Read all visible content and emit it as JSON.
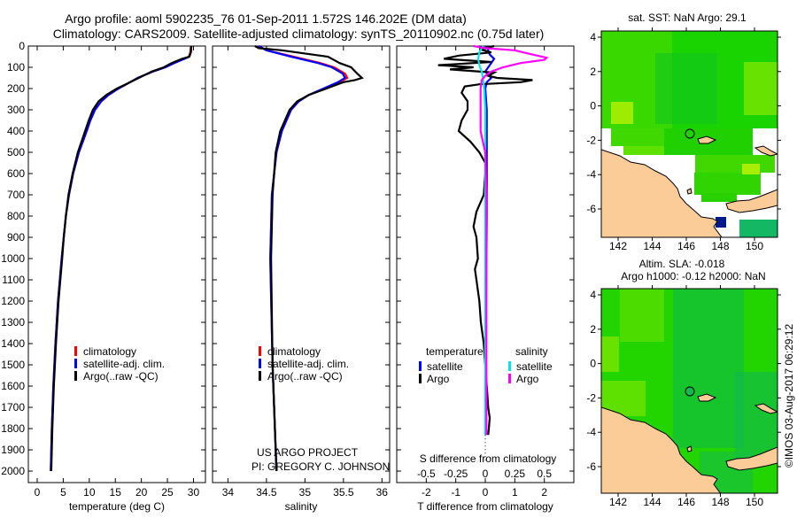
{
  "title_line1": "Argo profile: aoml 5902235_76 01-Sep-2011 1.572S 146.202E (DM data)",
  "title_line2": "Climatology: CARS2009. Satellite-adjusted climatology: synTS_20110902.nc (0.75d later)",
  "colors": {
    "climatology": "#ff0000",
    "satellite_temp": "#0000ff",
    "argo": "#000000",
    "satellite_sal": "#00e5ee",
    "argo_sal": "#ff00ff",
    "land": "#fbcb98"
  },
  "credits": {
    "project": "US ARGO PROJECT",
    "pi": "PI: GREGORY C. JOHNSON",
    "stamp": "©IMOS 03-Aug-2017 06:29:12"
  },
  "depth_ticks": [
    "0",
    "100",
    "200",
    "300",
    "400",
    "500",
    "600",
    "700",
    "800",
    "900",
    "1000",
    "1100",
    "1200",
    "1300",
    "1400",
    "1500",
    "1600",
    "1700",
    "1800",
    "1900",
    "2000"
  ],
  "chart_data": [
    {
      "type": "line",
      "name": "temperature-profile",
      "xlabel": "temperature (deg C)",
      "ylabel": "depth",
      "xlim": [
        -1.7,
        32.3
      ],
      "ylim": [
        2054,
        0
      ],
      "xticks": [
        "0",
        "5",
        "10",
        "15",
        "20",
        "25",
        "30"
      ],
      "legend": {
        "position": "bottom-center",
        "entries": [
          "climatology",
          "satellite-adj. clim.",
          "Argo(..raw -QC)"
        ]
      },
      "series": [
        {
          "name": "climatology",
          "color": "#ff0000",
          "depth": [
            0,
            30,
            50,
            60,
            80,
            100,
            120,
            150,
            180,
            200,
            230,
            260,
            300,
            350,
            400,
            500,
            600,
            700,
            800,
            900,
            1000,
            1200,
            1400,
            1600,
            1800,
            2000
          ],
          "values": [
            29.5,
            29.4,
            29.1,
            28.2,
            26.3,
            24.6,
            22.2,
            19.3,
            17.1,
            15.6,
            13.7,
            12.3,
            11.1,
            10.2,
            9.5,
            8.0,
            6.9,
            6.1,
            5.5,
            5.1,
            4.7,
            4.0,
            3.5,
            3.1,
            2.8,
            2.6
          ]
        },
        {
          "name": "satellite-adj. clim.",
          "color": "#0000ff",
          "depth": [
            0,
            30,
            50,
            60,
            80,
            100,
            120,
            150,
            180,
            200,
            230,
            260,
            300,
            350,
            400,
            500,
            600,
            700,
            800,
            900,
            1000,
            1200,
            1400,
            1600,
            1800,
            2000
          ],
          "values": [
            29.6,
            29.5,
            29.2,
            28.3,
            26.3,
            24.6,
            22.2,
            19.3,
            17.1,
            15.6,
            13.7,
            12.3,
            11.1,
            10.2,
            9.5,
            8.0,
            6.9,
            6.1,
            5.5,
            5.1,
            4.7,
            4.0,
            3.5,
            3.1,
            2.8,
            2.6
          ]
        },
        {
          "name": "Argo(..raw -QC)",
          "color": "#000000",
          "depth": [
            0,
            30,
            50,
            60,
            80,
            100,
            120,
            150,
            180,
            200,
            230,
            260,
            300,
            350,
            400,
            500,
            600,
            700,
            800,
            900,
            1000,
            1200,
            1400,
            1600,
            1800,
            2000
          ],
          "values": [
            29.6,
            29.5,
            29.2,
            27.8,
            25.8,
            24.3,
            22.0,
            19.5,
            17.0,
            15.3,
            13.3,
            11.8,
            10.7,
            9.9,
            9.2,
            7.8,
            6.8,
            6.0,
            5.5,
            5.1,
            4.8,
            4.1,
            3.6,
            3.2,
            2.9,
            2.7
          ]
        }
      ]
    },
    {
      "type": "line",
      "name": "salinity-profile",
      "xlabel": "salinity",
      "ylabel": "depth",
      "xlim": [
        33.8,
        36.1
      ],
      "ylim": [
        2054,
        0
      ],
      "xticks": [
        "34",
        "34.5",
        "35",
        "35.5",
        "36"
      ],
      "legend": {
        "position": "bottom-center",
        "entries": [
          "climatology",
          "satellite-adj. clim.",
          "Argo(..raw -QC)"
        ]
      },
      "series": [
        {
          "name": "climatology",
          "color": "#ff0000",
          "depth": [
            0,
            20,
            50,
            80,
            100,
            130,
            150,
            170,
            200,
            230,
            260,
            300,
            400,
            500,
            700,
            1000,
            1500,
            2000
          ],
          "values": [
            34.4,
            34.5,
            34.85,
            35.2,
            35.38,
            35.52,
            35.55,
            35.45,
            35.25,
            35.05,
            34.92,
            34.82,
            34.7,
            34.63,
            34.57,
            34.55,
            34.58,
            34.63
          ]
        },
        {
          "name": "satellite-adj. clim.",
          "color": "#0000ff",
          "depth": [
            0,
            20,
            50,
            80,
            100,
            130,
            150,
            170,
            200,
            230,
            260,
            300,
            400,
            500,
            700,
            1000,
            1500,
            2000
          ],
          "values": [
            34.4,
            34.5,
            34.82,
            35.17,
            35.35,
            35.49,
            35.52,
            35.43,
            35.24,
            35.05,
            34.92,
            34.82,
            34.7,
            34.63,
            34.57,
            34.55,
            34.58,
            34.63
          ]
        },
        {
          "name": "Argo(..raw -QC)",
          "color": "#000000",
          "depth": [
            0,
            10,
            20,
            50,
            80,
            100,
            130,
            150,
            160,
            170,
            200,
            230,
            260,
            300,
            400,
            500,
            700,
            1000,
            1500,
            2000
          ],
          "values": [
            34.35,
            34.4,
            34.7,
            35.3,
            35.45,
            35.6,
            35.68,
            35.74,
            35.65,
            35.5,
            35.28,
            35.05,
            34.9,
            34.8,
            34.68,
            34.62,
            34.58,
            34.56,
            34.58,
            34.63
          ]
        }
      ]
    },
    {
      "type": "line",
      "name": "difference-profile",
      "xlabel": "T difference from climatology",
      "xlabel_top": "S difference from climatology",
      "xlim": [
        -3,
        3
      ],
      "xlim_s": [
        -0.75,
        0.75
      ],
      "ylim": [
        2054,
        0
      ],
      "xticks": [
        "-2",
        "-1",
        "0",
        "1",
        "2"
      ],
      "xticks_s": [
        "-0.5",
        "-0.25",
        "0",
        "0.25",
        "0.5"
      ],
      "legend": {
        "position": "bottom-center",
        "temperature_header": "temperature",
        "salinity_header": "salinity",
        "entries": [
          "satellite",
          "Argo"
        ]
      },
      "series": [
        {
          "name": "T satellite",
          "axis": "T",
          "color": "#0000ff",
          "depth": [
            0,
            20,
            40,
            60,
            80,
            100,
            120,
            150,
            170,
            200,
            300,
            500,
            800,
            1200,
            1600,
            1830
          ],
          "values": [
            0.05,
            0.1,
            0.15,
            0.3,
            0.2,
            0.1,
            0.0,
            0.2,
            0.05,
            0.0,
            0.05,
            0.05,
            0.05,
            0.03,
            0.0,
            0.0
          ]
        },
        {
          "name": "T Argo",
          "axis": "T",
          "color": "#000000",
          "depth": [
            0,
            15,
            30,
            45,
            60,
            75,
            90,
            100,
            110,
            125,
            140,
            150,
            160,
            170,
            180,
            190,
            220,
            260,
            300,
            350,
            400,
            450,
            500,
            550,
            600,
            700,
            780,
            850,
            900,
            1000,
            1050,
            1100,
            1200,
            1300,
            1400,
            1500,
            1600,
            1700,
            1750,
            1800,
            1830
          ],
          "values": [
            0.3,
            -0.2,
            0.2,
            -0.9,
            -1.4,
            0.2,
            -1.6,
            -0.4,
            -1.2,
            0.3,
            0.1,
            0.4,
            1.6,
            1.2,
            -0.2,
            -0.7,
            -0.8,
            -0.6,
            -0.6,
            -0.8,
            -0.9,
            -0.5,
            -0.2,
            0.0,
            0.0,
            -0.05,
            -0.3,
            -0.4,
            -0.3,
            -0.25,
            -0.35,
            -0.3,
            -0.2,
            -0.15,
            -0.05,
            0.0,
            0.05,
            0.1,
            0.15,
            0.12,
            0.1
          ]
        },
        {
          "name": "S satellite",
          "axis": "S",
          "color": "#00e5ee",
          "depth": [
            0,
            30,
            60,
            90,
            120,
            150,
            200,
            300,
            500,
            1000,
            1500,
            1830
          ],
          "values": [
            -0.02,
            -0.05,
            -0.06,
            -0.05,
            -0.03,
            -0.02,
            -0.01,
            0.0,
            0.0,
            0.0,
            0.0,
            0.0
          ]
        },
        {
          "name": "S Argo",
          "axis": "S",
          "color": "#ff00ff",
          "depth": [
            0,
            10,
            20,
            40,
            55,
            65,
            80,
            100,
            120,
            140,
            160,
            200,
            300,
            400,
            450,
            500,
            700,
            1000,
            1500,
            1830
          ],
          "values": [
            -0.1,
            0.0,
            0.25,
            0.4,
            0.52,
            0.5,
            0.3,
            0.15,
            0.05,
            0.0,
            -0.03,
            -0.04,
            -0.04,
            -0.04,
            -0.02,
            0.0,
            0.01,
            0.01,
            0.01,
            0.01
          ]
        }
      ]
    }
  ],
  "maps": [
    {
      "name": "sst-map",
      "title": "sat. SST: NaN Argo: 29.1",
      "title2": "",
      "lon_ticks": [
        "142",
        "144",
        "146",
        "148",
        "150"
      ],
      "lat_ticks": [
        "4",
        "2",
        "0",
        "-2",
        "-4",
        "-6"
      ],
      "marker": {
        "lon": 146.202,
        "lat": -1.572
      }
    },
    {
      "name": "sla-map",
      "title": "Altim. SLA: -0.018",
      "title2": "Argo h1000: -0.12 h2000: NaN",
      "lon_ticks": [
        "142",
        "144",
        "146",
        "148",
        "150"
      ],
      "lat_ticks": [
        "4",
        "2",
        "0",
        "-2",
        "-4",
        "-6"
      ],
      "marker": {
        "lon": 146.202,
        "lat": -1.572
      }
    }
  ]
}
